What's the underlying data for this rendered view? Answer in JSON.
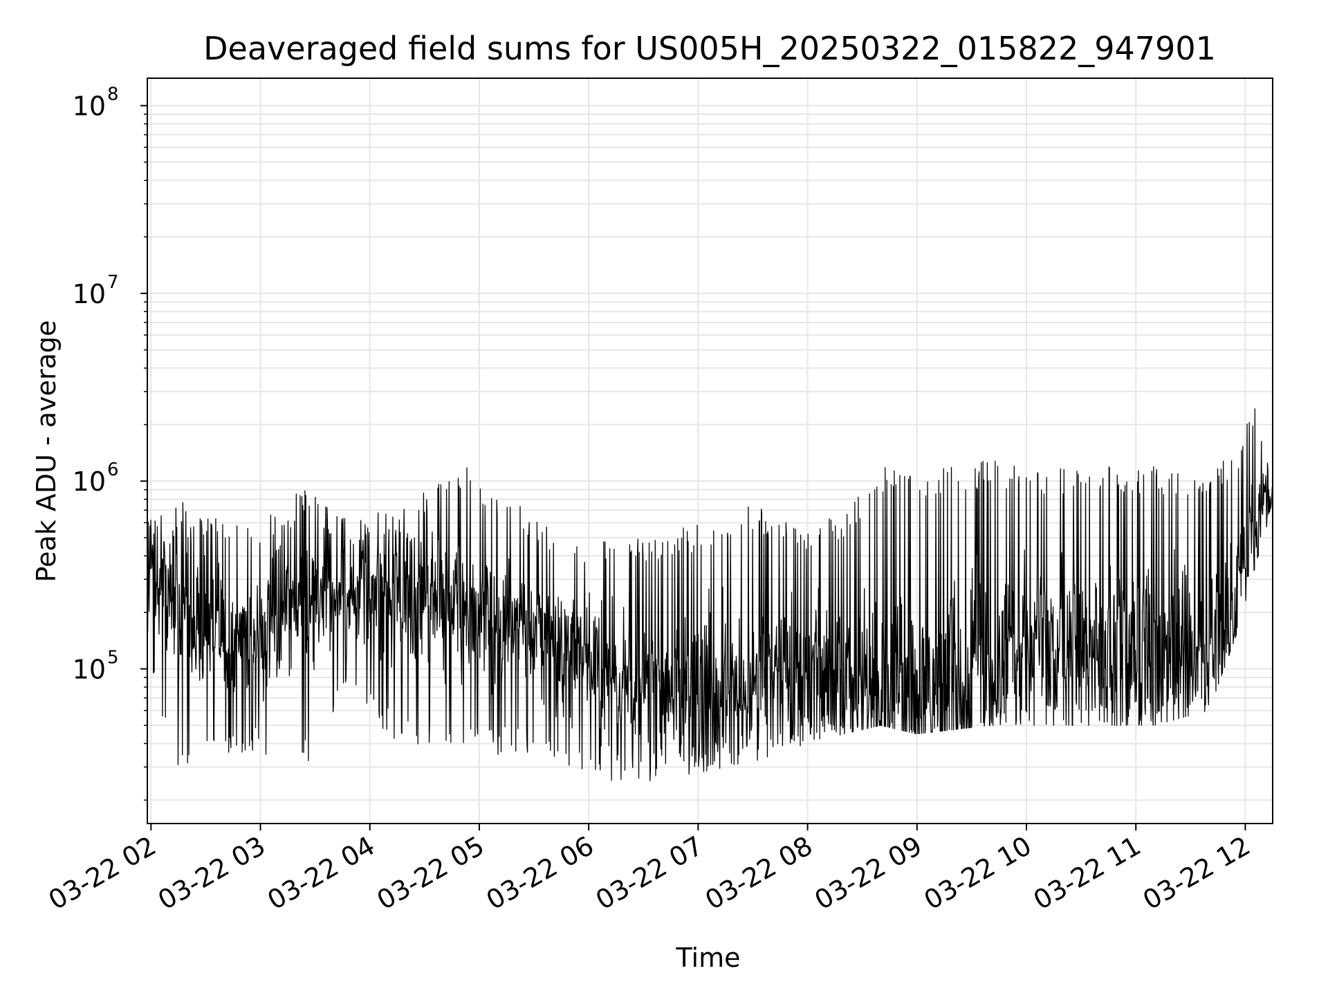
{
  "chart_data": {
    "type": "line",
    "title": "Deaveraged field sums for US005H_20250322_015822_947901",
    "xlabel": "Time",
    "ylabel": "Peak ADU - average",
    "y_scale": "log",
    "ylim": [
      15000,
      140000000
    ],
    "xlim": [
      "2025-03-22 01:58",
      "2025-03-22 12:15"
    ],
    "grid": true,
    "x_ticks": [
      {
        "t": "2025-03-22 02:00",
        "label": "03-22 02"
      },
      {
        "t": "2025-03-22 03:00",
        "label": "03-22 03"
      },
      {
        "t": "2025-03-22 04:00",
        "label": "03-22 04"
      },
      {
        "t": "2025-03-22 05:00",
        "label": "03-22 05"
      },
      {
        "t": "2025-03-22 06:00",
        "label": "03-22 06"
      },
      {
        "t": "2025-03-22 07:00",
        "label": "03-22 07"
      },
      {
        "t": "2025-03-22 08:00",
        "label": "03-22 08"
      },
      {
        "t": "2025-03-22 09:00",
        "label": "03-22 09"
      },
      {
        "t": "2025-03-22 10:00",
        "label": "03-22 10"
      },
      {
        "t": "2025-03-22 11:00",
        "label": "03-22 11"
      },
      {
        "t": "2025-03-22 12:00",
        "label": "03-22 12"
      }
    ],
    "y_ticks": [
      {
        "value": 100000,
        "base": "10",
        "exp": "5"
      },
      {
        "value": 1000000,
        "base": "10",
        "exp": "6"
      },
      {
        "value": 10000000,
        "base": "10",
        "exp": "7"
      },
      {
        "value": 100000000,
        "base": "10",
        "exp": "8"
      }
    ],
    "series": [
      {
        "color": "#000000",
        "envelope": [
          {
            "t": "2025-03-22 01:58",
            "low": 100000,
            "high": 600000
          },
          {
            "t": "2025-03-22 02:15",
            "low": 30000,
            "high": 800000
          },
          {
            "t": "2025-03-22 02:30",
            "low": 30000,
            "high": 700000
          },
          {
            "t": "2025-03-22 03:00",
            "low": 35000,
            "high": 650000
          },
          {
            "t": "2025-03-22 03:25",
            "low": 30000,
            "high": 950000
          },
          {
            "t": "2025-03-22 03:45",
            "low": 70000,
            "high": 650000
          },
          {
            "t": "2025-03-22 04:15",
            "low": 40000,
            "high": 700000
          },
          {
            "t": "2025-03-22 04:50",
            "low": 35000,
            "high": 1250000
          },
          {
            "t": "2025-03-22 05:30",
            "low": 35000,
            "high": 650000
          },
          {
            "t": "2025-03-22 06:00",
            "low": 25000,
            "high": 500000
          },
          {
            "t": "2025-03-22 06:30",
            "low": 25000,
            "high": 500000
          },
          {
            "t": "2025-03-22 07:00",
            "low": 28000,
            "high": 600000
          },
          {
            "t": "2025-03-22 07:30",
            "low": 32000,
            "high": 750000
          },
          {
            "t": "2025-03-22 08:00",
            "low": 40000,
            "high": 550000
          },
          {
            "t": "2025-03-22 08:20",
            "low": 45000,
            "high": 700000
          },
          {
            "t": "2025-03-22 08:40",
            "low": 50000,
            "high": 1200000
          },
          {
            "t": "2025-03-22 09:00",
            "low": 45000,
            "high": 1100000
          },
          {
            "t": "2025-03-22 09:40",
            "low": 50000,
            "high": 1300000
          },
          {
            "t": "2025-03-22 10:10",
            "low": 50000,
            "high": 1200000
          },
          {
            "t": "2025-03-22 10:40",
            "low": 50000,
            "high": 1200000
          },
          {
            "t": "2025-03-22 11:10",
            "low": 50000,
            "high": 1200000
          },
          {
            "t": "2025-03-22 11:40",
            "low": 60000,
            "high": 1100000
          },
          {
            "t": "2025-03-22 11:55",
            "low": 150000,
            "high": 1500000
          },
          {
            "t": "2025-03-22 12:07",
            "low": 400000,
            "high": 2800000
          },
          {
            "t": "2025-03-22 12:15",
            "low": 500000,
            "high": 900000
          }
        ],
        "base_level": [
          {
            "t": "2025-03-22 01:58",
            "value": 400000
          },
          {
            "t": "2025-03-22 02:30",
            "value": 150000
          },
          {
            "t": "2025-03-22 03:00",
            "value": 150000
          },
          {
            "t": "2025-03-22 03:30",
            "value": 250000
          },
          {
            "t": "2025-03-22 04:30",
            "value": 250000
          },
          {
            "t": "2025-03-22 05:30",
            "value": 150000
          },
          {
            "t": "2025-03-22 06:30",
            "value": 80000
          },
          {
            "t": "2025-03-22 07:15",
            "value": 70000
          },
          {
            "t": "2025-03-22 07:40",
            "value": 90000
          },
          {
            "t": "2025-03-22 08:20",
            "value": 90000
          },
          {
            "t": "2025-03-22 08:35",
            "value": 75000
          },
          {
            "t": "2025-03-22 09:30",
            "value": 80000
          },
          {
            "t": "2025-03-22 10:00",
            "value": 150000
          },
          {
            "t": "2025-03-22 10:30",
            "value": 120000
          },
          {
            "t": "2025-03-22 11:00",
            "value": 130000
          },
          {
            "t": "2025-03-22 11:45",
            "value": 120000
          },
          {
            "t": "2025-03-22 12:00",
            "value": 350000
          },
          {
            "t": "2025-03-22 12:10",
            "value": 700000
          },
          {
            "t": "2025-03-22 12:15",
            "value": 800000
          }
        ]
      }
    ]
  }
}
